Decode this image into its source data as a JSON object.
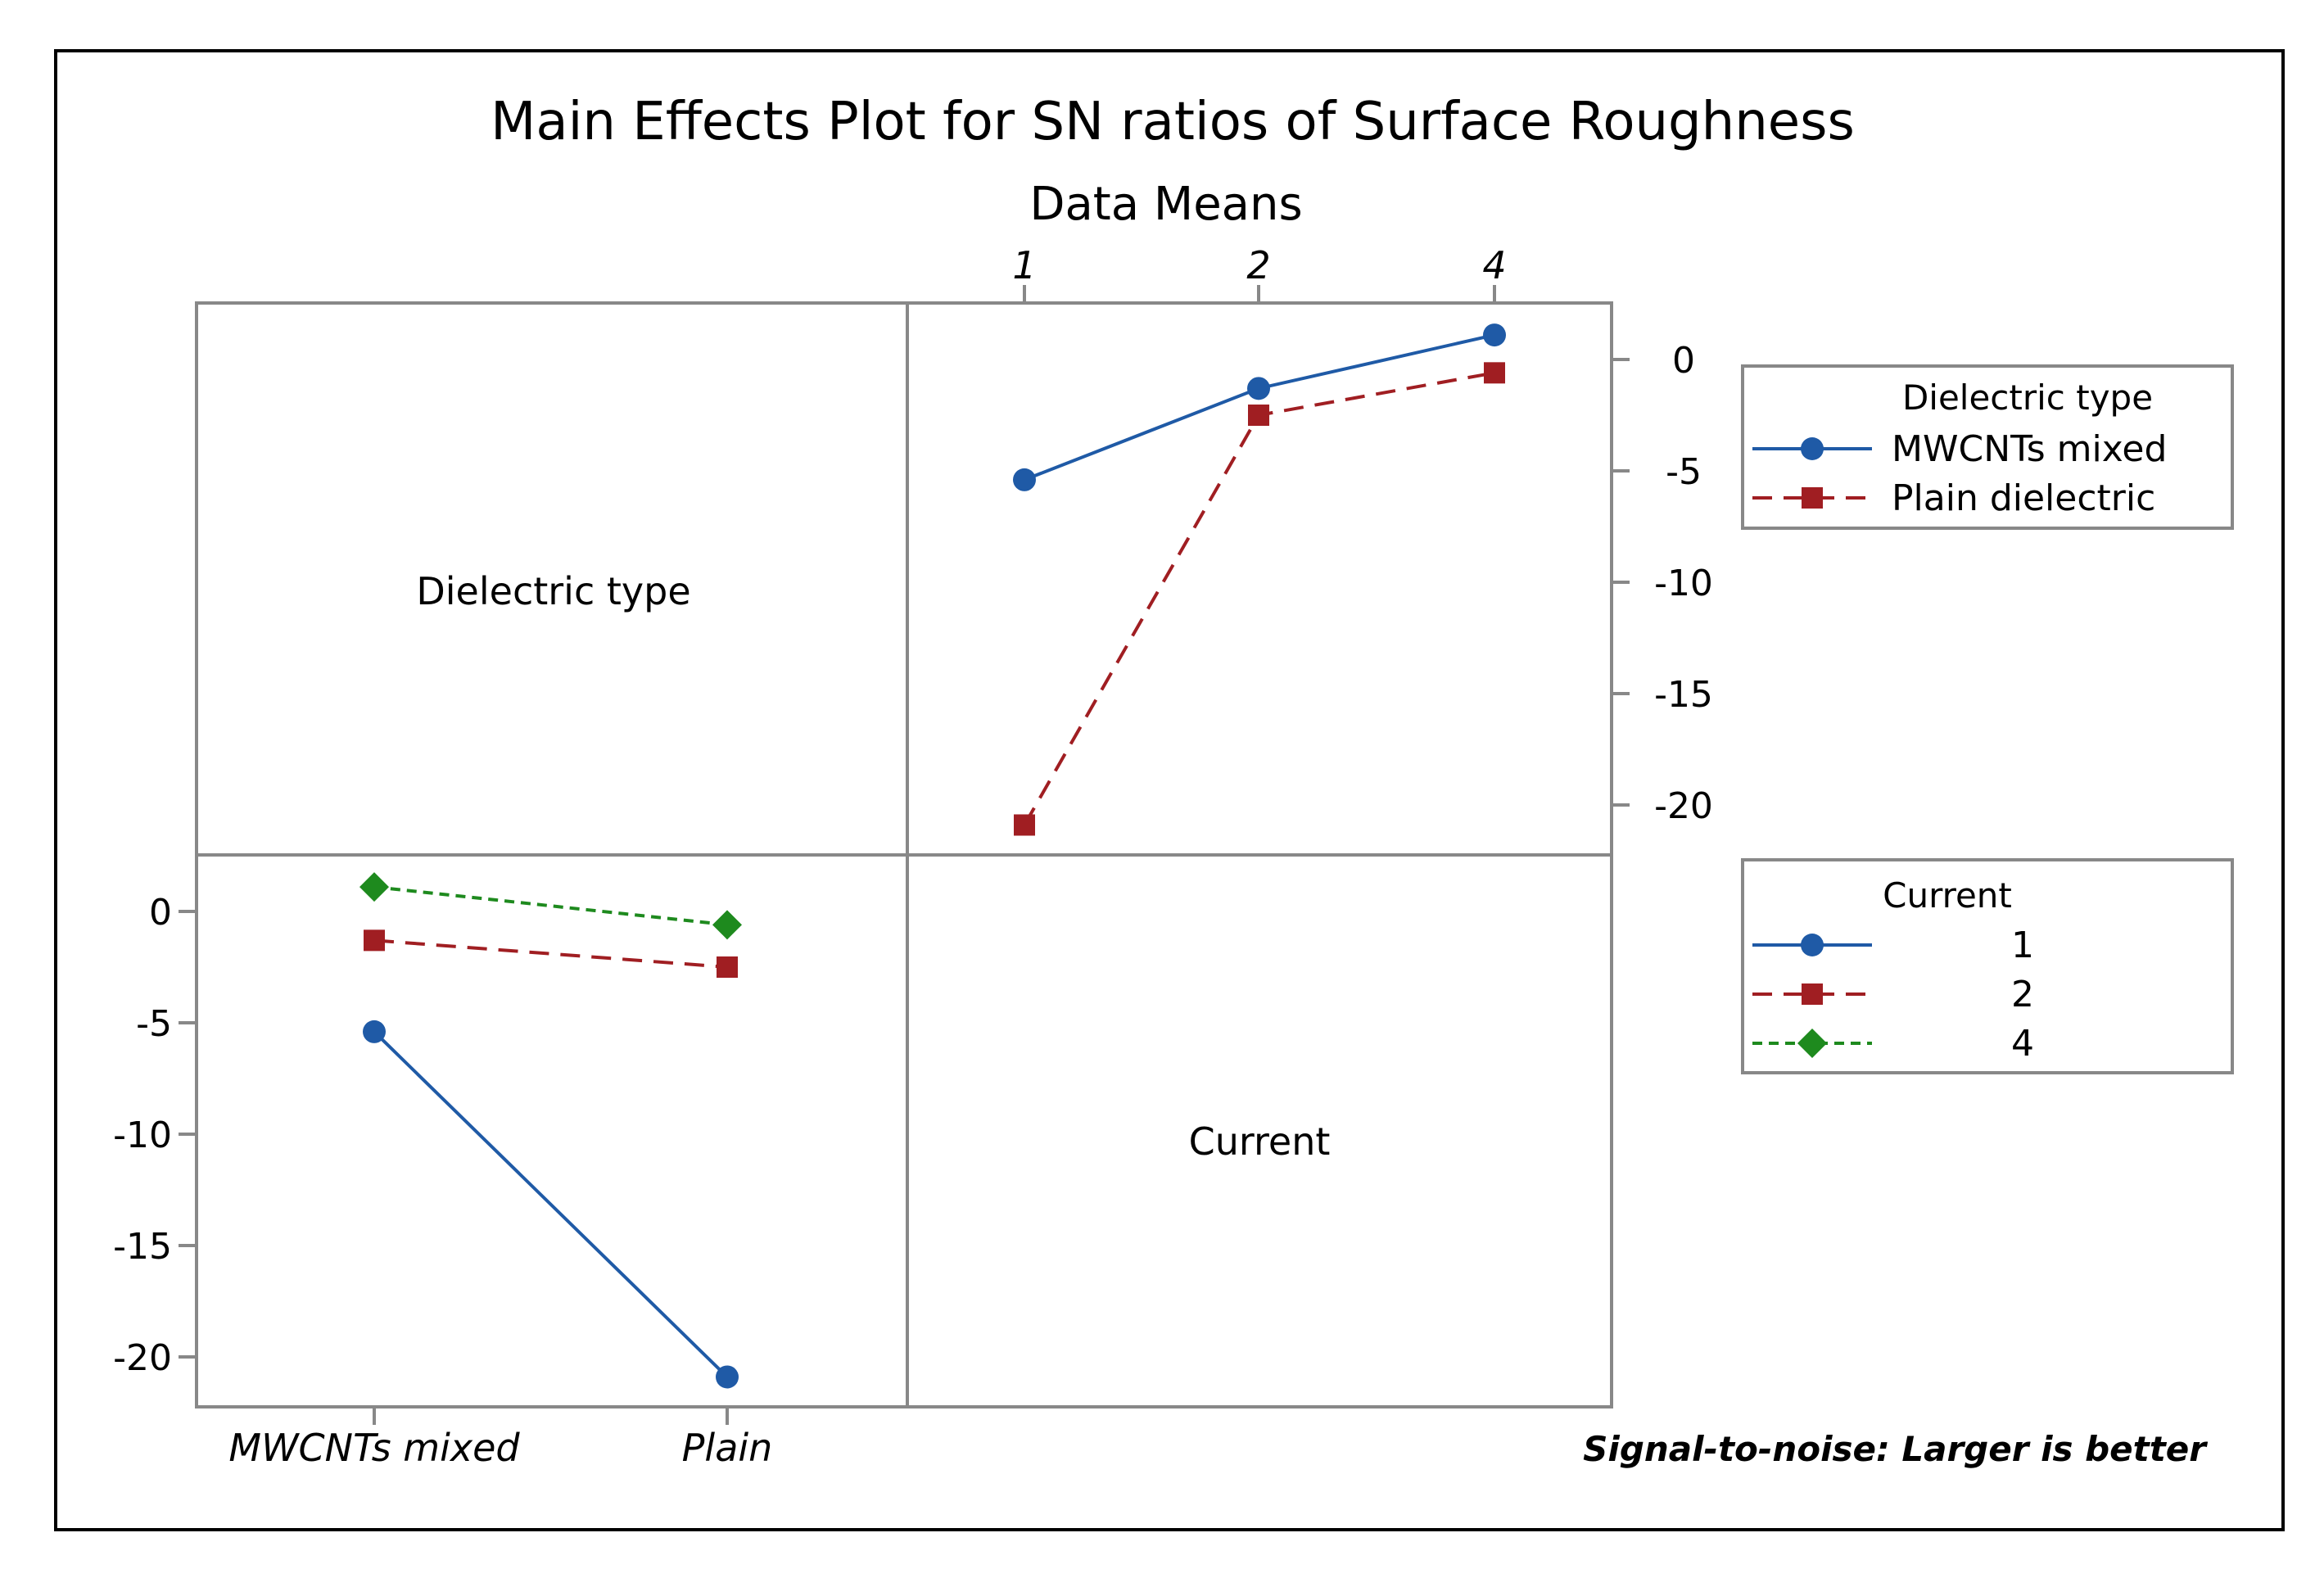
{
  "title": "Main Effects Plot for SN ratios of Surface Roughness",
  "subtitle": "Data Means",
  "footnote": "Signal-to-noise: Larger is better",
  "chart_data": [
    {
      "type": "line",
      "panel": "top-right",
      "row_factor": "Dielectric type",
      "x_factor": "Current",
      "x": [
        "1",
        "2",
        "4"
      ],
      "ylim": [
        -22,
        2
      ],
      "yticks": [
        0,
        -5,
        -10,
        -15,
        -20
      ],
      "series": [
        {
          "name": "MWCNTs mixed",
          "values": [
            -5.4,
            -1.3,
            1.1
          ],
          "color": "#1f5aa6",
          "marker": "circle",
          "dash": "solid"
        },
        {
          "name": "Plain dielectric",
          "values": [
            -20.9,
            -2.5,
            -0.6
          ],
          "color": "#a01e22",
          "marker": "square",
          "dash": "dashed"
        }
      ],
      "legend": {
        "title": "Dielectric type",
        "placement": "right"
      }
    },
    {
      "type": "line",
      "panel": "bottom-left",
      "row_factor": "Current",
      "x_factor": "Dielectric type",
      "x": [
        "MWCNTs mixed",
        "Plain"
      ],
      "ylim": [
        -22,
        2
      ],
      "yticks": [
        0,
        -5,
        -10,
        -15,
        -20
      ],
      "series": [
        {
          "name": "1",
          "values": [
            -5.4,
            -20.9
          ],
          "color": "#1f5aa6",
          "marker": "circle",
          "dash": "solid"
        },
        {
          "name": "2",
          "values": [
            -1.3,
            -2.5
          ],
          "color": "#a01e22",
          "marker": "square",
          "dash": "dashed"
        },
        {
          "name": "4",
          "values": [
            1.1,
            -0.6
          ],
          "color": "#1e8a1e",
          "marker": "diamond",
          "dash": "dotted"
        }
      ],
      "legend": {
        "title": "Current",
        "placement": "right"
      }
    }
  ],
  "diagonal_labels": [
    "Dielectric type",
    "Current"
  ]
}
